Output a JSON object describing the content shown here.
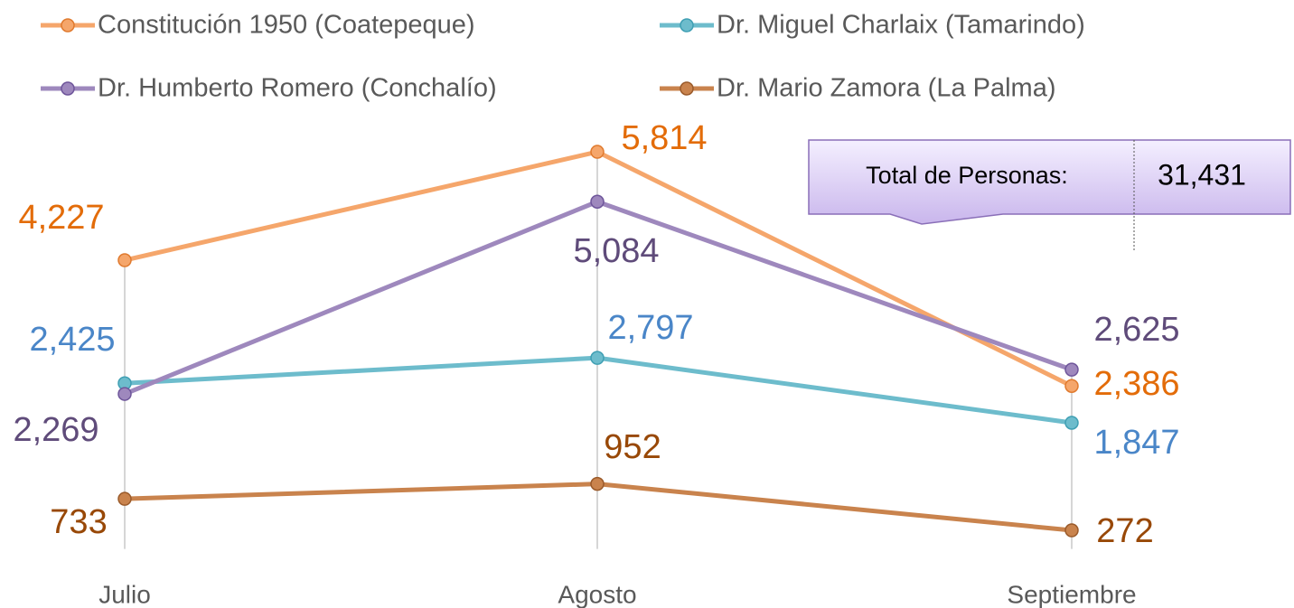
{
  "chart_data": {
    "type": "line",
    "categories": [
      "Julio",
      "Agosto",
      "Septiembre"
    ],
    "ylim": [
      0,
      6000
    ],
    "series": [
      {
        "name": "Constitución 1950 (Coatepeque)",
        "color": "#f5a66b",
        "label_color": "#e36c09",
        "values": [
          4227,
          5814,
          2386
        ],
        "value_labels": [
          "4,227",
          "5,814",
          "2,386"
        ]
      },
      {
        "name": "Dr. Miguel Charlaix (Tamarindo)",
        "color": "#6dbccc",
        "label_color": "#4a86c8",
        "values": [
          2425,
          2797,
          1847
        ],
        "value_labels": [
          "2,425",
          "2,797",
          "1,847"
        ]
      },
      {
        "name": "Dr. Humberto Romero (Conchalío)",
        "color": "#9e88bd",
        "label_color": "#5f4b7a",
        "values": [
          2269,
          5084,
          2625
        ],
        "value_labels": [
          "2,269",
          "5,084",
          "2,625"
        ]
      },
      {
        "name": "Dr. Mario Zamora (La Palma)",
        "color": "#c9834d",
        "label_color": "#984807",
        "values": [
          733,
          952,
          272
        ],
        "value_labels": [
          "733",
          "952",
          "272"
        ]
      }
    ],
    "annotation": {
      "label": "Total de Personas:",
      "value": "31,431"
    }
  }
}
